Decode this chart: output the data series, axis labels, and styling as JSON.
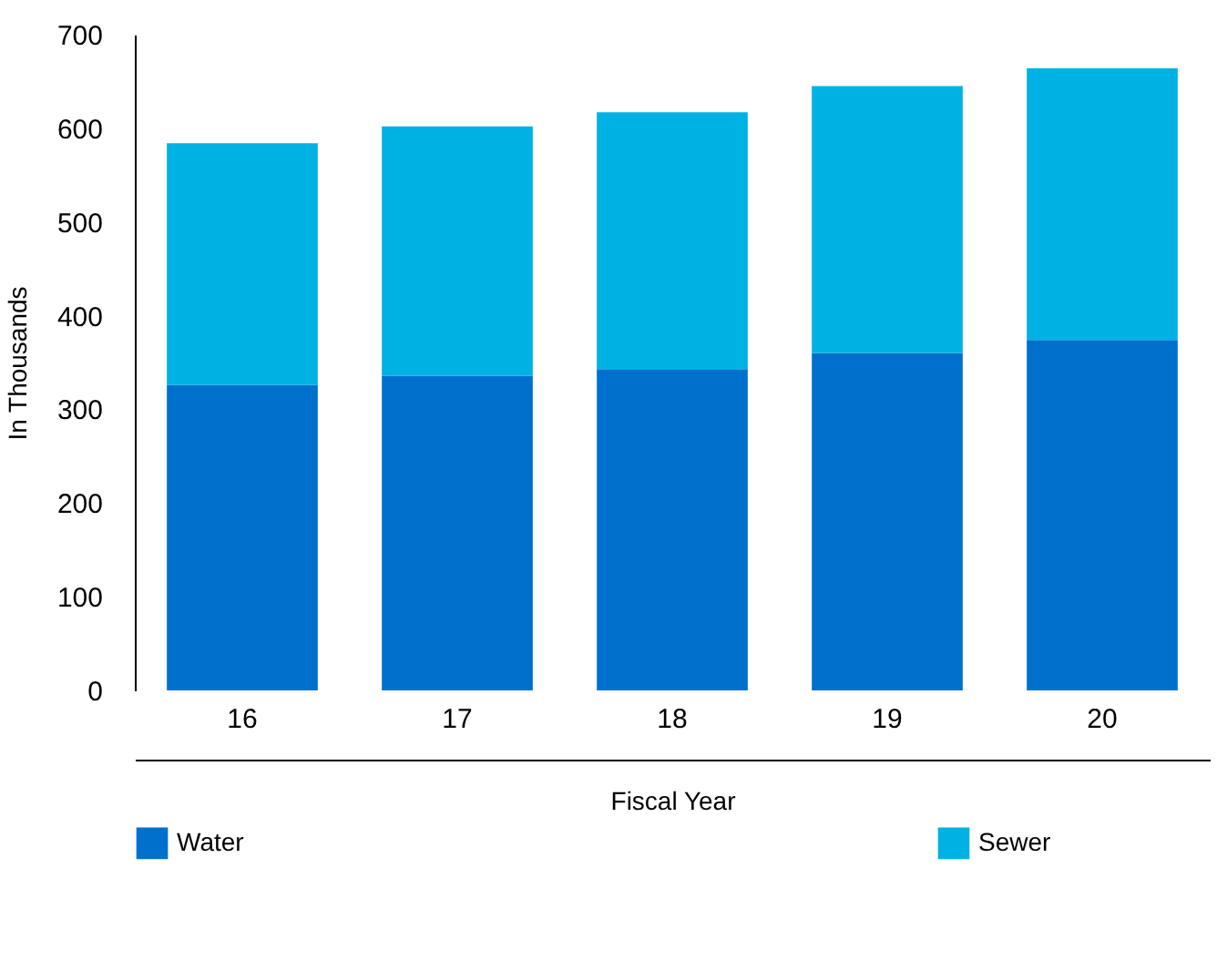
{
  "chart_data": {
    "type": "bar",
    "stacked": true,
    "xlabel": "Fiscal Year",
    "ylabel": "In Thousands",
    "categories": [
      "16",
      "17",
      "18",
      "19",
      "20"
    ],
    "series": [
      {
        "name": "Water",
        "color": "#0070cd",
        "values": [
          326,
          336,
          343,
          360,
          374
        ]
      },
      {
        "name": "Sewer",
        "color": "#00b2e3",
        "values": [
          258,
          266,
          274,
          285,
          290
        ]
      }
    ],
    "ylim": [
      0,
      700
    ],
    "yticks": [
      0,
      100,
      200,
      300,
      400,
      500,
      600,
      700
    ],
    "grid": false,
    "legend": "bottom"
  }
}
